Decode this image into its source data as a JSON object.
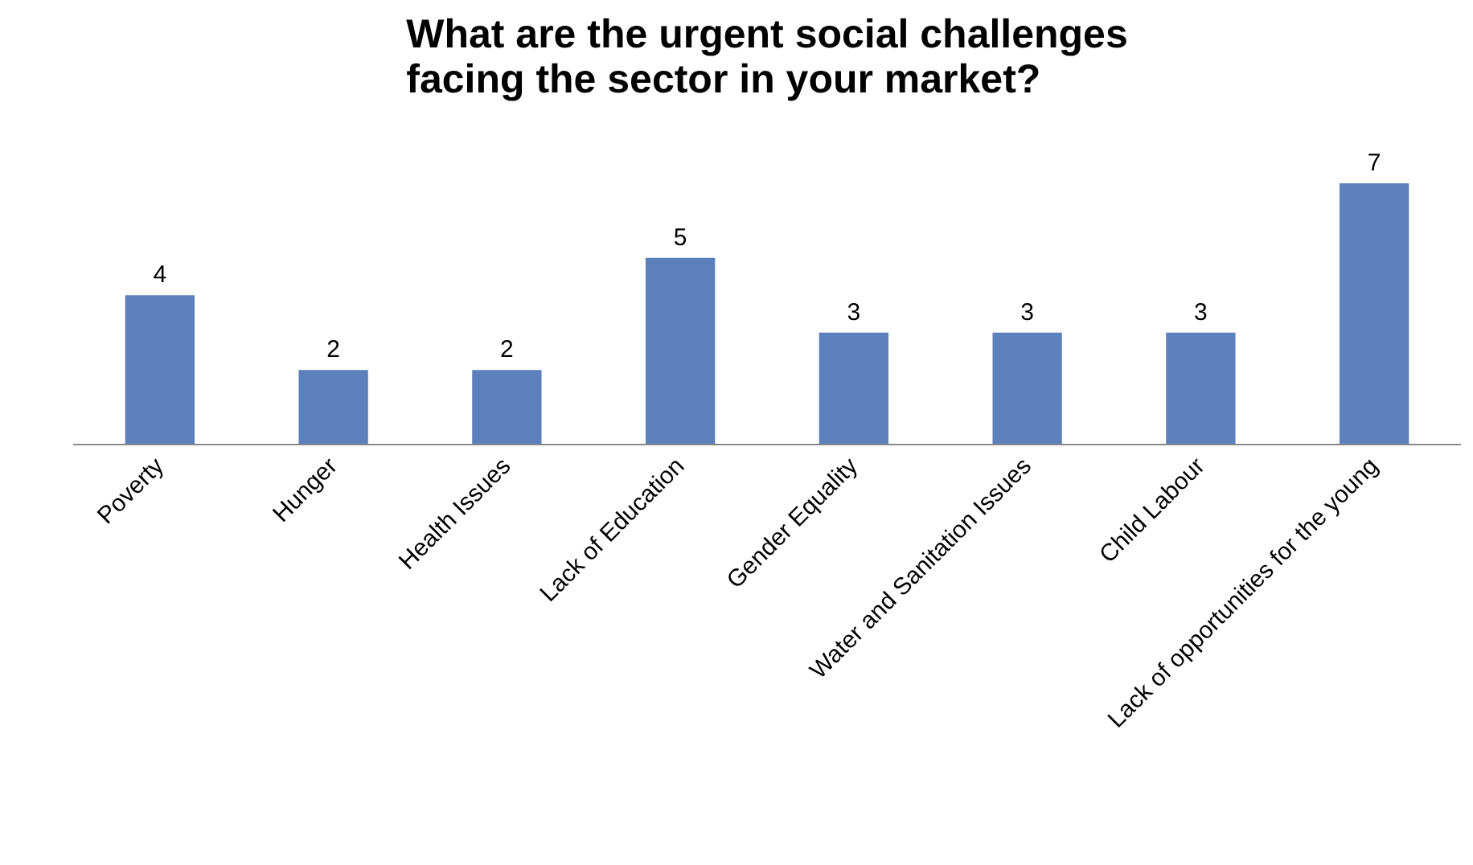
{
  "chart_data": {
    "type": "bar",
    "title": "What are the urgent social challenges\nfacing the sector in your market?",
    "categories": [
      "Poverty",
      "Hunger",
      "Health Issues",
      "Lack of Education",
      "Gender Equality",
      "Water and Sanitation Issues",
      "Child Labour",
      "Lack of opportunities for the young"
    ],
    "values": [
      4,
      2,
      2,
      5,
      3,
      3,
      3,
      7
    ],
    "color": "#5b80bc",
    "data_labels": true,
    "grid": false
  }
}
